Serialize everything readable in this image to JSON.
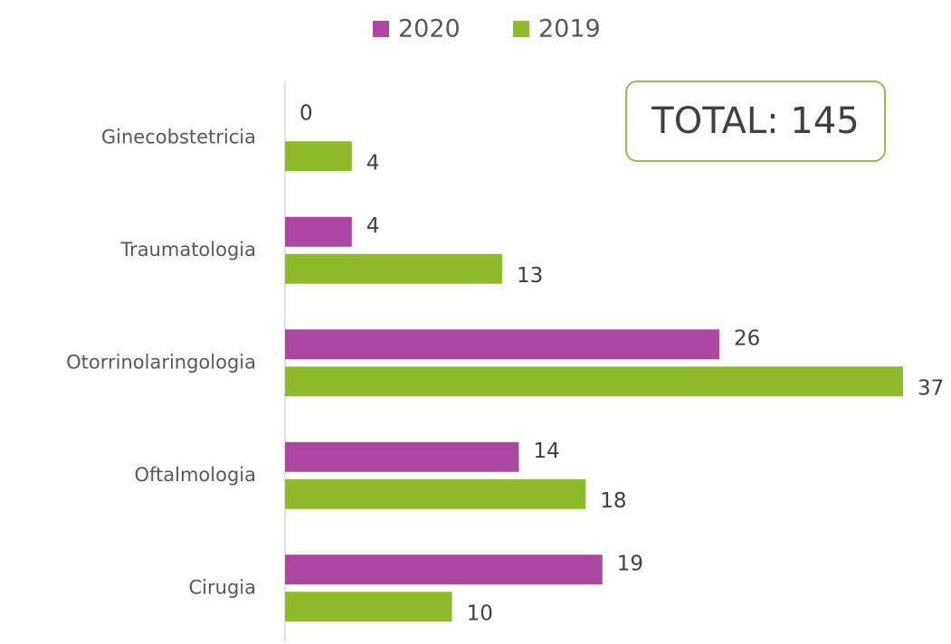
{
  "chart_data": {
    "type": "barh",
    "categories": [
      "Ginecobstetricia",
      "Traumatologia",
      "Otorrinolaringologia",
      "Oftalmologia",
      "Cirugia"
    ],
    "series": [
      {
        "name": "2020",
        "color": "#ab47a0",
        "values": [
          0,
          4,
          26,
          14,
          19
        ]
      },
      {
        "name": "2019",
        "color": "#8fba2b",
        "values": [
          4,
          13,
          37,
          18,
          10
        ]
      }
    ],
    "xlim": [
      0,
      37
    ],
    "legend": "top",
    "annotation": "TOTAL: 145"
  }
}
